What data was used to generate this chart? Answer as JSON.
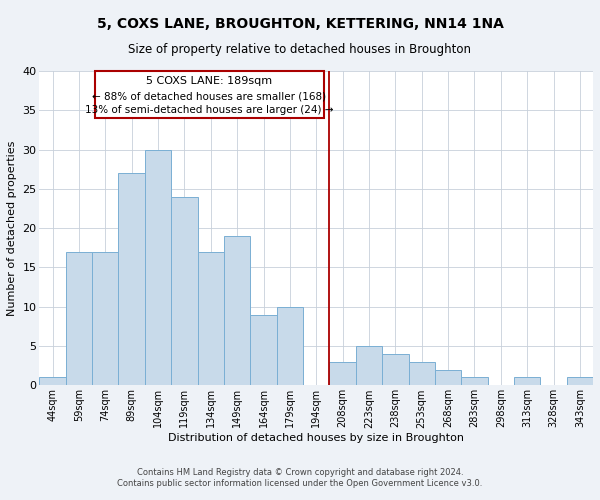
{
  "title": "5, COXS LANE, BROUGHTON, KETTERING, NN14 1NA",
  "subtitle": "Size of property relative to detached houses in Broughton",
  "xlabel": "Distribution of detached houses by size in Broughton",
  "ylabel": "Number of detached properties",
  "categories": [
    "44sqm",
    "59sqm",
    "74sqm",
    "89sqm",
    "104sqm",
    "119sqm",
    "134sqm",
    "149sqm",
    "164sqm",
    "179sqm",
    "194sqm",
    "208sqm",
    "223sqm",
    "238sqm",
    "253sqm",
    "268sqm",
    "283sqm",
    "298sqm",
    "313sqm",
    "328sqm",
    "343sqm"
  ],
  "values": [
    1,
    17,
    17,
    27,
    30,
    24,
    17,
    19,
    9,
    10,
    0,
    3,
    5,
    4,
    3,
    2,
    1,
    0,
    1,
    0,
    1
  ],
  "bar_color": "#c8daea",
  "bar_edge_color": "#7aafd4",
  "vline_x": 10.5,
  "vline_color": "#aa0000",
  "annotation_title": "5 COXS LANE: 189sqm",
  "annotation_line1": "← 88% of detached houses are smaller (168)",
  "annotation_line2": "13% of semi-detached houses are larger (24) →",
  "annotation_box_color": "#ffffff",
  "annotation_box_edge": "#aa0000",
  "ylim": [
    0,
    40
  ],
  "yticks": [
    0,
    5,
    10,
    15,
    20,
    25,
    30,
    35,
    40
  ],
  "footer_line1": "Contains HM Land Registry data © Crown copyright and database right 2024.",
  "footer_line2": "Contains public sector information licensed under the Open Government Licence v3.0.",
  "bg_color": "#eef2f7",
  "plot_bg_color": "#ffffff",
  "grid_color": "#c8d0da"
}
